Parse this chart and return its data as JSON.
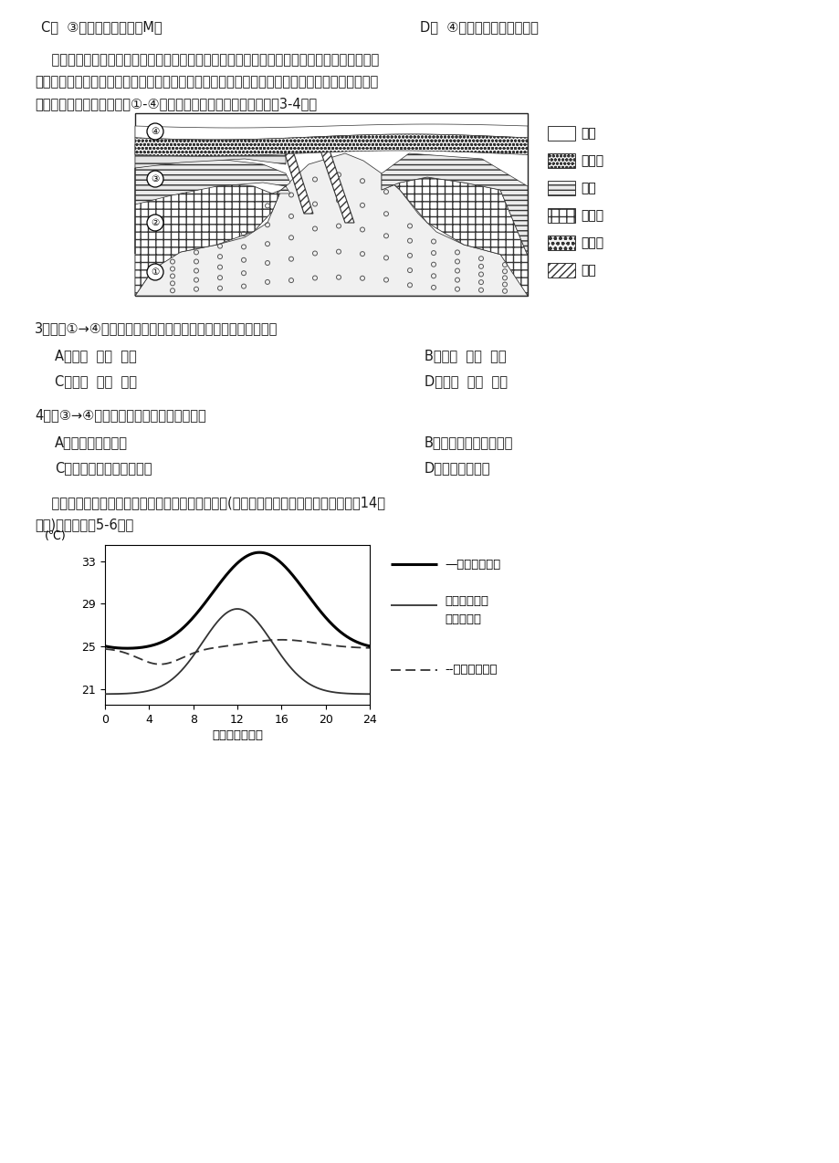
{
  "page_bg": "#ffffff",
  "text_color": "#1a1a1a",
  "line1_c": "C．  ③地雨区主要出现在M侧",
  "line1_d": "D．  ④地三条等值线数值相同",
  "para1": "    同一时期在海洋中形成的砂岩、页岩、石灰岩在水平方向上是从浅海到深海依次排列的，砂砾",
  "para2": "岩则是陆相碎屑沉积岩。在地质学中，海退是指海岸线向海洋推进，海进是指海岸线向陆地推进。",
  "para3": "下图为某海域地质剖面图，①-④为不同地质时期的岩层。据此回答3-4题。",
  "legend_items": [
    "砂岩",
    "砂砾岩",
    "页岩",
    "石灰岩",
    "花岗岩",
    "断层"
  ],
  "q3_text": "3．图中①→④岩层的更替与该地海岸线的变化顺序对应正确的是",
  "q3_A": "A．海退  海进  海进",
  "q3_B": "B．海进  海进  海退",
  "q3_C": "C．海进  海退  海退",
  "q3_D": "D．海退  海退  海进",
  "q4_text": "4．与③→④时期海岸线的变化一致的现象有",
  "q4_A": "A．沿海陆地被淹没",
  "q4_B": "B．河口三角洲面积扩大",
  "q4_C": "C．河口区土地盐碱化减轻",
  "q4_D": "D．咸潮危害减轻",
  "para_chart": "    下图是某地气象台绘制的该地气温日变化监测图。(注：一天中最高气温一般出现在午后14时",
  "para_chart2": "左右)，读图回答5-6题。",
  "chart_ylabel": "(℃)",
  "chart_xlabel": "北京时间（时）",
  "chart_yticks": [
    21,
    25,
    29,
    33
  ],
  "chart_xticks": [
    0,
    4,
    8,
    12,
    16,
    20,
    24
  ],
  "legend1": "—气温日变化线",
  "legend2_line1": "地面吸收的太",
  "legend2_line2": "阳辐射热量",
  "legend3": "--地面散失热量"
}
